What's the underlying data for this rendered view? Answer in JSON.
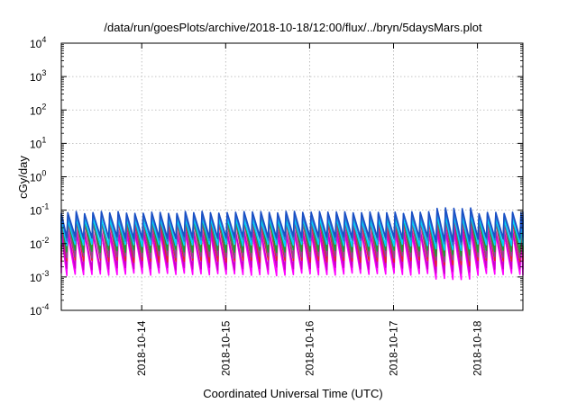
{
  "chart_data": {
    "type": "line",
    "title": "/data/run/goesPlots/archive/2018-10-18/12:00/flux/../bryn/5daysMars.plot",
    "xlabel": "Coordinated Universal Time (UTC)",
    "ylabel": "cGy/day",
    "yscale": "log",
    "ylim": [
      0.0001,
      10000
    ],
    "xlim": [
      "2018-10-13T01:00",
      "2018-10-18T13:00"
    ],
    "y_ticks": [
      {
        "base": "10",
        "exp": "-4",
        "value": 0.0001
      },
      {
        "base": "10",
        "exp": "-3",
        "value": 0.001
      },
      {
        "base": "10",
        "exp": "-2",
        "value": 0.01
      },
      {
        "base": "10",
        "exp": "-1",
        "value": 0.1
      },
      {
        "base": "10",
        "exp": "0",
        "value": 1
      },
      {
        "base": "10",
        "exp": "1",
        "value": 10
      },
      {
        "base": "10",
        "exp": "2",
        "value": 100
      },
      {
        "base": "10",
        "exp": "3",
        "value": 1000
      },
      {
        "base": "10",
        "exp": "4",
        "value": 10000
      }
    ],
    "x_ticks": [
      "2018-10-14",
      "2018-10-15",
      "2018-10-16",
      "2018-10-17",
      "2018-10-18"
    ],
    "grid": true,
    "legend": "none",
    "pattern": "sawtooth, period ≈ 2.4 h",
    "series": [
      {
        "color": "#ff00ff",
        "peak": 0.02,
        "trough": 0.0012
      },
      {
        "color": "#cc00cc",
        "peak": 0.025,
        "trough": 0.0018
      },
      {
        "color": "#e8212a",
        "peak": 0.045,
        "trough": 0.003
      },
      {
        "color": "#8b4a8c",
        "peak": 0.05,
        "trough": 0.004
      },
      {
        "color": "#1e9e2e",
        "peak": 0.06,
        "trough": 0.006
      },
      {
        "color": "#00d0ff",
        "peak": 0.055,
        "trough": 0.009
      },
      {
        "color": "#2f7bd6",
        "peak": 0.075,
        "trough": 0.013
      },
      {
        "color": "#1a4fc4",
        "peak": 0.085,
        "trough": 0.015
      }
    ]
  }
}
